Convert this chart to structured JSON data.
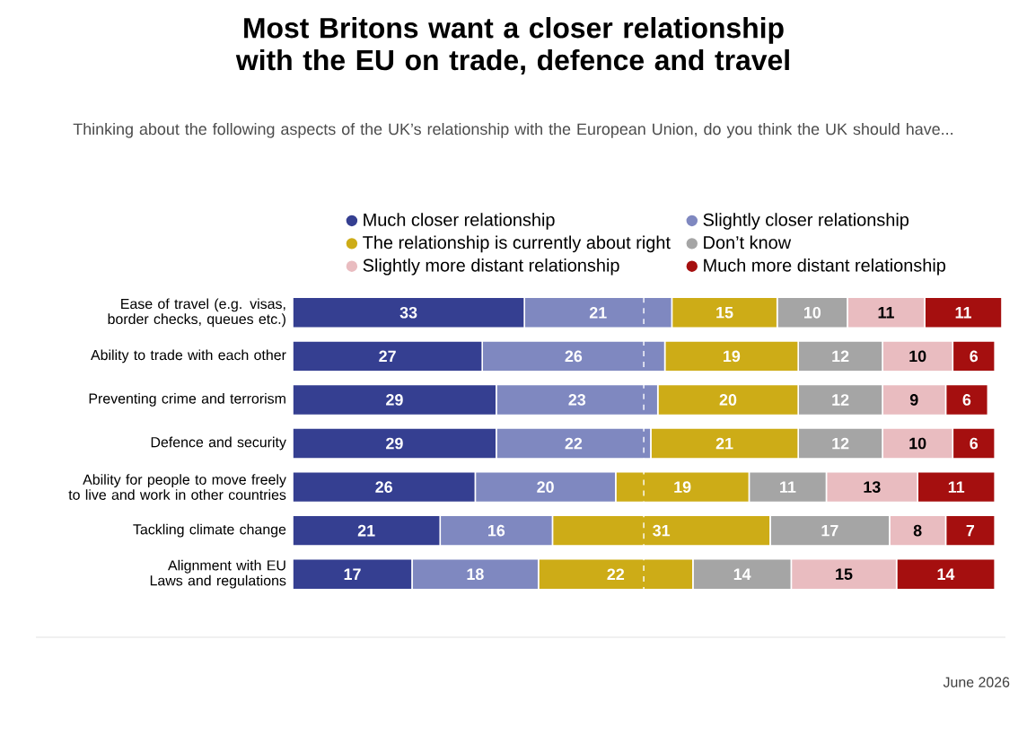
{
  "chart_data": {
    "type": "bar",
    "orientation": "horizontal",
    "stacked": true,
    "data_labels": true,
    "legend": "top",
    "tick_labels": "y",
    "title": "Most Britons want a closer relationship with the EU on trade, defence and travel",
    "subtitle": "Thinking about the following aspects of the UK’s relationship with the European Union, do you think the UK should have...",
    "categories": [
      "Ease of travel (e.g. visas, border checks, queues etc.)",
      "Ability to trade with each other",
      "Preventing crime and terrorism",
      "Defence and security",
      "Ability for people to move freely to live and work in other countries",
      "Tackling climate change",
      "Alignment with EU Laws and regulations"
    ],
    "series": [
      {
        "name": "Much closer relationship",
        "color": "#353f91",
        "values": [
          33,
          27,
          29,
          29,
          26,
          21,
          17
        ]
      },
      {
        "name": "Slightly closer relationship",
        "color": "#7f88c0",
        "values": [
          21,
          26,
          23,
          22,
          20,
          16,
          18
        ]
      },
      {
        "name": "The relationship is currently about right",
        "color": "#cdac17",
        "values": [
          15,
          19,
          20,
          21,
          19,
          31,
          22
        ]
      },
      {
        "name": "Don’t know",
        "color": "#a5a5a5",
        "values": [
          10,
          12,
          12,
          12,
          11,
          17,
          14
        ]
      },
      {
        "name": "Slightly more distant relationship",
        "color": "#e9bcc0",
        "values": [
          11,
          10,
          9,
          10,
          13,
          8,
          15
        ]
      },
      {
        "name": "Much more distant relationship",
        "color": "#a50f0f",
        "values": [
          11,
          6,
          6,
          6,
          11,
          7,
          14
        ]
      }
    ],
    "ref_lines": [
      {
        "axis": "x",
        "value": 50,
        "color": "#ffffff",
        "line_style": "dashed"
      }
    ],
    "annotations": [
      "June 2026"
    ]
  }
}
